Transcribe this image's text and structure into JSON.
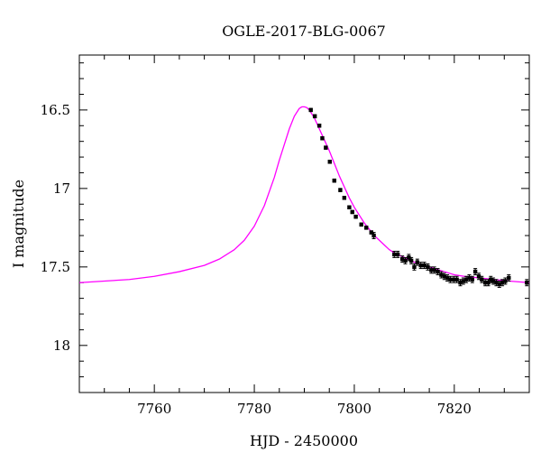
{
  "chart_data": {
    "type": "line",
    "title": "OGLE-2017-BLG-0067",
    "xlabel": "HJD - 2450000",
    "ylabel": "I magnitude",
    "xlim": [
      7745,
      7835
    ],
    "ylim": [
      18.3,
      16.15
    ],
    "y_inverted": true,
    "x_ticks": [
      7760,
      7780,
      7800,
      7820
    ],
    "x_tick_labels": [
      "7760",
      "7780",
      "7800",
      "7820"
    ],
    "y_ticks": [
      16.5,
      17,
      17.5,
      18
    ],
    "y_tick_labels": [
      "16.5",
      "17",
      "17.5",
      "18"
    ],
    "grid": false,
    "colors": {
      "model": "#ff00ff",
      "points": "#000000"
    },
    "series": [
      {
        "type": "line",
        "x": [
          7745,
          7750,
          7755,
          7760,
          7765,
          7770,
          7773,
          7776,
          7778,
          7780,
          7782,
          7784,
          7785,
          7786,
          7787,
          7788,
          7789,
          7789.5,
          7790,
          7790.5,
          7791,
          7792,
          7793,
          7794,
          7795,
          7796,
          7797,
          7798,
          7799,
          7800,
          7801,
          7802,
          7803,
          7804,
          7805,
          7806,
          7807,
          7808,
          7810,
          7812,
          7814,
          7816,
          7818,
          7820,
          7822,
          7825,
          7828,
          7831,
          7835
        ],
        "y": [
          17.6,
          17.59,
          17.58,
          17.56,
          17.53,
          17.49,
          17.45,
          17.39,
          17.33,
          17.24,
          17.11,
          16.93,
          16.82,
          16.72,
          16.62,
          16.54,
          16.49,
          16.48,
          16.48,
          16.485,
          16.5,
          16.55,
          16.62,
          16.69,
          16.76,
          16.84,
          16.92,
          16.99,
          17.06,
          17.12,
          17.17,
          17.22,
          17.26,
          17.3,
          17.33,
          17.36,
          17.39,
          17.41,
          17.44,
          17.47,
          17.49,
          17.51,
          17.53,
          17.55,
          17.56,
          17.57,
          17.58,
          17.59,
          17.6
        ]
      },
      {
        "type": "scatter",
        "x": [
          7791.3,
          7792.1,
          7793.0,
          7793.6,
          7794.3,
          7795.1,
          7796.0,
          7797.2,
          7798.0,
          7799.0,
          7799.6,
          7800.3,
          7801.4,
          7802.4,
          7803.4,
          7803.9,
          7808.0,
          7808.7,
          7809.6,
          7810.2,
          7810.9,
          7811.4,
          7812.0,
          7812.6,
          7813.3,
          7814.0,
          7814.7,
          7815.4,
          7816.0,
          7816.7,
          7817.4,
          7818.0,
          7818.6,
          7819.2,
          7819.9,
          7820.5,
          7821.2,
          7821.8,
          7822.4,
          7823.0,
          7823.6,
          7824.2,
          7824.9,
          7825.5,
          7826.2,
          7826.8,
          7827.3,
          7827.8,
          7828.4,
          7829.0,
          7829.6,
          7830.2,
          7830.9,
          7834.5
        ],
        "y": [
          16.5,
          16.54,
          16.6,
          16.68,
          16.74,
          16.83,
          16.95,
          17.01,
          17.06,
          17.12,
          17.15,
          17.18,
          17.23,
          17.25,
          17.28,
          17.3,
          17.42,
          17.42,
          17.45,
          17.46,
          17.44,
          17.46,
          17.5,
          17.47,
          17.49,
          17.49,
          17.5,
          17.52,
          17.52,
          17.53,
          17.55,
          17.56,
          17.57,
          17.58,
          17.58,
          17.58,
          17.6,
          17.59,
          17.58,
          17.57,
          17.58,
          17.53,
          17.56,
          17.58,
          17.6,
          17.6,
          17.58,
          17.59,
          17.6,
          17.61,
          17.6,
          17.59,
          17.57,
          17.6
        ],
        "yerr": [
          0.01,
          0.01,
          0.01,
          0.01,
          0.01,
          0.01,
          0.01,
          0.01,
          0.01,
          0.01,
          0.01,
          0.01,
          0.01,
          0.01,
          0.01,
          0.02,
          0.02,
          0.02,
          0.02,
          0.02,
          0.02,
          0.02,
          0.02,
          0.02,
          0.02,
          0.02,
          0.02,
          0.02,
          0.02,
          0.02,
          0.02,
          0.02,
          0.02,
          0.02,
          0.02,
          0.02,
          0.02,
          0.02,
          0.02,
          0.02,
          0.02,
          0.02,
          0.02,
          0.02,
          0.02,
          0.02,
          0.02,
          0.02,
          0.02,
          0.02,
          0.02,
          0.02,
          0.02,
          0.02
        ]
      }
    ]
  }
}
